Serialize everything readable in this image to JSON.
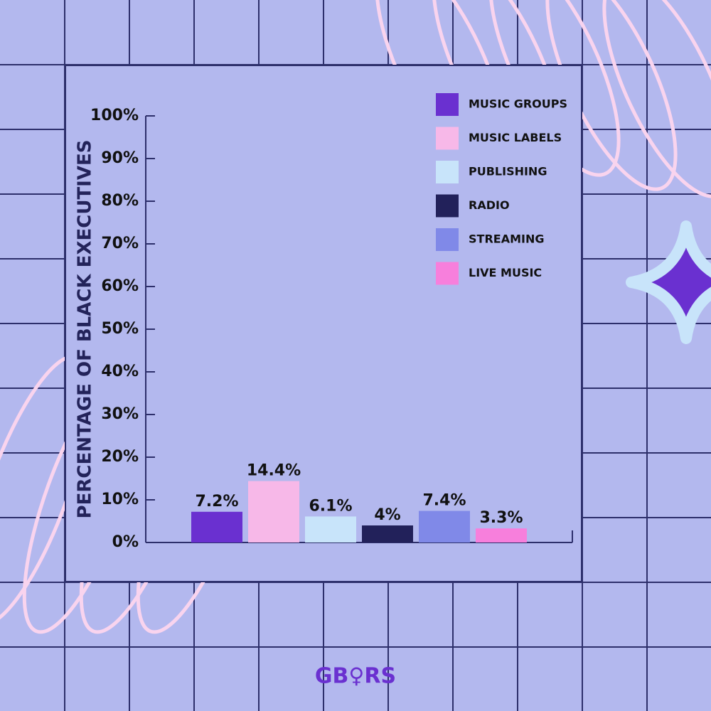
{
  "chart_data": {
    "type": "bar",
    "y_label": "PERCENTAGE OF BLACK EXECUTIVES",
    "series": [
      {
        "name": "MUSIC GROUPS",
        "color": "#6a30d0",
        "values": [
          7.2
        ],
        "value_labels": [
          "7.2%"
        ]
      },
      {
        "name": "MUSIC LABELS",
        "color": "#f7b8e8",
        "values": [
          14.4
        ],
        "value_labels": [
          "14.4%"
        ]
      },
      {
        "name": "PUBLISHING",
        "color": "#c8e4fa",
        "values": [
          6.1
        ],
        "value_labels": [
          "6.1%"
        ]
      },
      {
        "name": "RADIO",
        "color": "#22215a",
        "values": [
          4
        ],
        "value_labels": [
          "4%"
        ]
      },
      {
        "name": "STREAMING",
        "color": "#8089e8",
        "values": [
          7.4
        ],
        "value_labels": [
          "7.4%"
        ]
      },
      {
        "name": "LIVE MUSIC",
        "color": "#f77fdc",
        "values": [
          3.3
        ],
        "value_labels": [
          "3.3%"
        ]
      }
    ],
    "ylim": [
      0,
      100
    ],
    "yticks": [
      {
        "value": 0,
        "label": "0%"
      },
      {
        "value": 10,
        "label": "10%"
      },
      {
        "value": 20,
        "label": "20%"
      },
      {
        "value": 30,
        "label": "30%"
      },
      {
        "value": 40,
        "label": "40%"
      },
      {
        "value": 50,
        "label": "50%"
      },
      {
        "value": 60,
        "label": "60%"
      },
      {
        "value": 70,
        "label": "70%"
      },
      {
        "value": 80,
        "label": "80%"
      },
      {
        "value": 90,
        "label": "90%"
      },
      {
        "value": 100,
        "label": "100%"
      }
    ],
    "legend": "upper right"
  },
  "logo": "GB♀RS"
}
